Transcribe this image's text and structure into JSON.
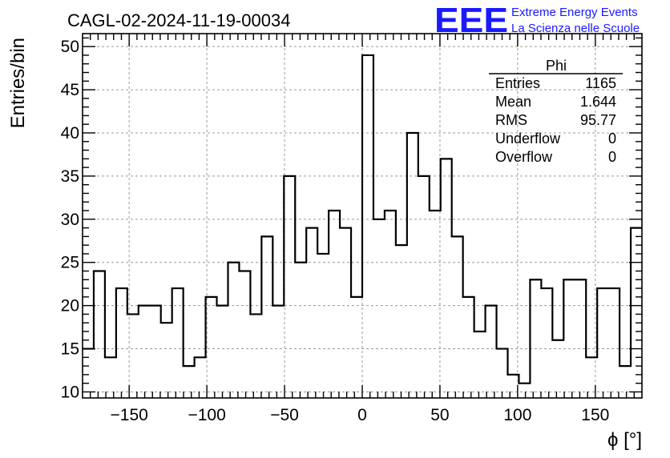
{
  "chart_data": {
    "type": "histogram",
    "title": "CAGL-02-2024-11-19-00034",
    "xlabel": "ϕ [°]",
    "ylabel": "Entries/bin",
    "xlim": [
      -180,
      180
    ],
    "ylim": [
      9.3,
      51.5
    ],
    "x_ticks": [
      -150,
      -100,
      -50,
      0,
      50,
      100,
      150
    ],
    "x_tick_labels": [
      "−150",
      "−100",
      "−50",
      "0",
      "50",
      "100",
      "150"
    ],
    "y_ticks": [
      10,
      15,
      20,
      25,
      30,
      35,
      40,
      45,
      50
    ],
    "grid": true,
    "bin_width": 7.2,
    "bin_start": -180,
    "values": [
      15,
      24,
      14,
      22,
      19,
      20,
      20,
      18,
      22,
      13,
      14,
      21,
      20,
      25,
      24,
      19,
      28,
      20,
      35,
      25,
      29,
      26,
      31,
      29,
      21,
      49,
      30,
      31,
      27,
      40,
      35,
      31,
      37,
      28,
      21,
      17,
      20,
      15,
      12,
      11,
      23,
      22,
      16,
      23,
      23,
      14,
      22,
      22,
      13,
      29
    ]
  },
  "stats": {
    "name": "Phi",
    "rows": [
      {
        "label": "Entries",
        "value": "1165"
      },
      {
        "label": "Mean",
        "value": "1.644"
      },
      {
        "label": "RMS",
        "value": "95.77"
      },
      {
        "label": "Underflow",
        "value": "0"
      },
      {
        "label": "Overflow",
        "value": "0"
      }
    ]
  },
  "logo": {
    "mark": "EEE",
    "line1": "Extreme Energy Events",
    "line2": "La Scienza nelle Scuole"
  },
  "colors": {
    "logo": "#1a1aff",
    "histogram": "#000000",
    "grid": "#999999"
  }
}
